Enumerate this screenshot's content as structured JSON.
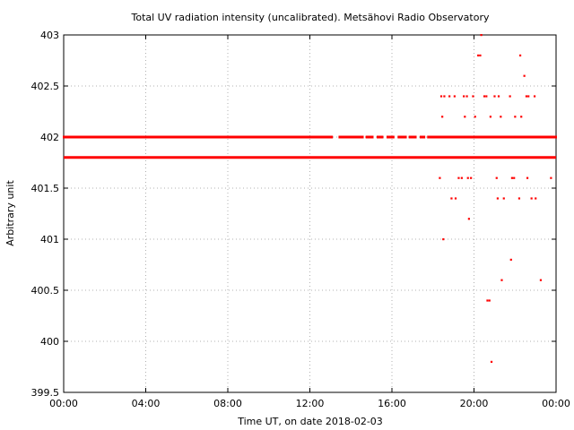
{
  "chart_data": {
    "type": "scatter",
    "title": "Total UV radiation intensity (uncalibrated). Metsähovi Radio Observatory",
    "xlabel": "Time UT, on date 2018-02-03",
    "ylabel": "Arbitrary unit",
    "xlim": [
      "00:00",
      "24:00"
    ],
    "ylim": [
      399.5,
      403
    ],
    "xticks": [
      "00:00",
      "04:00",
      "08:00",
      "12:00",
      "16:00",
      "20:00",
      "00:00"
    ],
    "yticks": [
      "399.5",
      "400",
      "400.5",
      "401",
      "401.5",
      "402",
      "402.5",
      "403"
    ],
    "grid": true,
    "series": [
      {
        "color": "#ff0000",
        "baseline": {
          "value": 401.8,
          "from_hour": 0,
          "to_hour": 24
        },
        "dense_402": {
          "value": 402.0,
          "from_hour": 0,
          "to_hour": 24
        },
        "points": [
          [
            18.33,
            401.6
          ],
          [
            18.4,
            402.4
          ],
          [
            18.45,
            402.2
          ],
          [
            18.5,
            401.0
          ],
          [
            18.55,
            402.4
          ],
          [
            18.8,
            402.4
          ],
          [
            18.9,
            401.4
          ],
          [
            19.05,
            402.4
          ],
          [
            19.1,
            401.4
          ],
          [
            19.25,
            401.6
          ],
          [
            19.4,
            401.6
          ],
          [
            19.5,
            402.4
          ],
          [
            19.55,
            402.2
          ],
          [
            19.65,
            402.4
          ],
          [
            19.7,
            401.6
          ],
          [
            19.75,
            401.2
          ],
          [
            19.85,
            401.6
          ],
          [
            19.95,
            402.4
          ],
          [
            20.05,
            402.2
          ],
          [
            20.2,
            402.8
          ],
          [
            20.3,
            402.8
          ],
          [
            20.35,
            403.0
          ],
          [
            20.5,
            402.4
          ],
          [
            20.6,
            402.4
          ],
          [
            20.65,
            400.4
          ],
          [
            20.75,
            400.4
          ],
          [
            20.8,
            402.2
          ],
          [
            20.85,
            399.8
          ],
          [
            21.0,
            402.4
          ],
          [
            21.1,
            401.6
          ],
          [
            21.15,
            401.4
          ],
          [
            21.2,
            402.4
          ],
          [
            21.3,
            402.2
          ],
          [
            21.35,
            400.6
          ],
          [
            21.45,
            401.4
          ],
          [
            21.75,
            402.4
          ],
          [
            21.8,
            400.8
          ],
          [
            21.85,
            401.6
          ],
          [
            21.95,
            401.6
          ],
          [
            22.0,
            402.2
          ],
          [
            22.2,
            401.4
          ],
          [
            22.25,
            402.8
          ],
          [
            22.3,
            402.2
          ],
          [
            22.45,
            402.6
          ],
          [
            22.55,
            402.4
          ],
          [
            22.6,
            401.6
          ],
          [
            22.65,
            402.4
          ],
          [
            22.8,
            401.4
          ],
          [
            22.95,
            402.4
          ],
          [
            23.0,
            401.4
          ],
          [
            23.25,
            400.6
          ],
          [
            23.75,
            401.6
          ]
        ]
      }
    ]
  }
}
